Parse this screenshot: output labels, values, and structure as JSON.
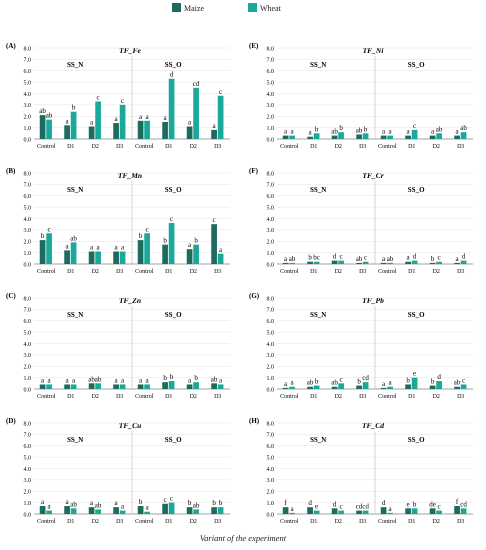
{
  "legend": [
    {
      "label": "Maize",
      "color": "#1d6b5f"
    },
    {
      "label": "Wheat",
      "color": "#1aa89a"
    }
  ],
  "x_axis_title": "Variant of the experiment",
  "chart_data": [
    {
      "type": "bar",
      "panel_label": "(A)",
      "title": "TF_Fe",
      "groups": [
        {
          "label": "SS_N",
          "categories": [
            "Control",
            "D1",
            "D2",
            "D3"
          ]
        },
        {
          "label": "SS_O",
          "categories": [
            "Control",
            "D1",
            "D2",
            "D3"
          ]
        }
      ],
      "series": [
        {
          "name": "Maize",
          "values": [
            2.1,
            1.2,
            1.1,
            1.4,
            1.6,
            1.5,
            1.1,
            0.8
          ],
          "letters": [
            "ab",
            "a",
            "a",
            "a",
            "a",
            "a",
            "a",
            "a"
          ]
        },
        {
          "name": "Wheat",
          "values": [
            1.7,
            2.4,
            3.3,
            3.0,
            1.6,
            5.3,
            4.5,
            3.8
          ],
          "letters": [
            "ab",
            "b",
            "c",
            "c",
            "a",
            "d",
            "cd",
            "c"
          ]
        }
      ],
      "ylim": [
        0,
        8
      ],
      "yticks": [
        "0.0",
        "1.0",
        "2.0",
        "3.0",
        "4.0",
        "5.0",
        "6.0",
        "7.0",
        "8.0"
      ]
    },
    {
      "type": "bar",
      "panel_label": "(B)",
      "title": "TF_Mn",
      "groups": [
        {
          "label": "SS_N",
          "categories": [
            "Control",
            "D1",
            "D2",
            "D3"
          ]
        },
        {
          "label": "SS_O",
          "categories": [
            "Control",
            "D1",
            "D2",
            "D3"
          ]
        }
      ],
      "series": [
        {
          "name": "Maize",
          "values": [
            2.1,
            1.2,
            1.1,
            1.1,
            2.1,
            1.7,
            1.3,
            3.5
          ],
          "letters": [
            "b",
            "a",
            "a",
            "a",
            "b",
            "b",
            "a",
            "c"
          ]
        },
        {
          "name": "Wheat",
          "values": [
            2.7,
            1.9,
            1.1,
            1.1,
            2.7,
            3.6,
            1.7,
            0.9
          ],
          "letters": [
            "c",
            "ab",
            "a",
            "a",
            "c",
            "c",
            "b",
            "a"
          ]
        }
      ],
      "ylim": [
        0,
        8
      ],
      "yticks": [
        "0.0",
        "1.0",
        "2.0",
        "3.0",
        "4.0",
        "5.0",
        "6.0",
        "7.0",
        "8.0"
      ]
    },
    {
      "type": "bar",
      "panel_label": "(C)",
      "title": "TF_Zn",
      "groups": [
        {
          "label": "SS_N",
          "categories": [
            "Control",
            "D1",
            "D2",
            "D3"
          ]
        },
        {
          "label": "SS_O",
          "categories": [
            "Control",
            "D1",
            "D2",
            "D3"
          ]
        }
      ],
      "series": [
        {
          "name": "Maize",
          "values": [
            0.4,
            0.4,
            0.5,
            0.4,
            0.4,
            0.6,
            0.4,
            0.5
          ],
          "letters": [
            "a",
            "a",
            "ab",
            "a",
            "a",
            "b",
            "a",
            "ab"
          ]
        },
        {
          "name": "Wheat",
          "values": [
            0.4,
            0.4,
            0.5,
            0.4,
            0.4,
            0.7,
            0.6,
            0.4
          ],
          "letters": [
            "a",
            "a",
            "ab",
            "a",
            "a",
            "b",
            "b",
            "a"
          ]
        }
      ],
      "ylim": [
        0,
        8
      ],
      "yticks": [
        "0.0",
        "1.0",
        "2.0",
        "3.0",
        "4.0",
        "5.0",
        "6.0",
        "7.0",
        "8.0"
      ]
    },
    {
      "type": "bar",
      "panel_label": "(D)",
      "title": "TF_Cu",
      "groups": [
        {
          "label": "SS_N",
          "categories": [
            "Control",
            "D1",
            "D2",
            "D3"
          ]
        },
        {
          "label": "SS_O",
          "categories": [
            "Control",
            "D1",
            "D2",
            "D3"
          ]
        }
      ],
      "series": [
        {
          "name": "Maize",
          "values": [
            0.7,
            0.7,
            0.6,
            0.6,
            0.7,
            0.9,
            0.6,
            0.6
          ],
          "letters": [
            "a",
            "a",
            "a",
            "a",
            "b",
            "c",
            "b",
            "b"
          ]
        },
        {
          "name": "Wheat",
          "values": [
            0.3,
            0.5,
            0.4,
            0.3,
            0.2,
            1.0,
            0.4,
            0.6
          ],
          "letters": [
            "a",
            "ab",
            "ab",
            "a",
            "a",
            "c",
            "ab",
            "b"
          ]
        }
      ],
      "ylim": [
        0,
        8
      ],
      "yticks": [
        "0.0",
        "1.0",
        "2.0",
        "3.0",
        "4.0",
        "5.0",
        "6.0",
        "7.0",
        "8.0"
      ]
    },
    {
      "type": "bar",
      "panel_label": "(E)",
      "title": "TF_Ni",
      "groups": [
        {
          "label": "SS_N",
          "categories": [
            "Control",
            "D1",
            "D2",
            "D3"
          ]
        },
        {
          "label": "SS_O",
          "categories": [
            "Control",
            "D1",
            "D2",
            "D3"
          ]
        }
      ],
      "series": [
        {
          "name": "Maize",
          "values": [
            0.3,
            0.2,
            0.3,
            0.4,
            0.3,
            0.3,
            0.3,
            0.3
          ],
          "letters": [
            "a",
            "a",
            "ab",
            "ab",
            "a",
            "a",
            "a",
            "a"
          ]
        },
        {
          "name": "Wheat",
          "values": [
            0.3,
            0.5,
            0.6,
            0.5,
            0.3,
            0.8,
            0.5,
            0.6
          ],
          "letters": [
            "a",
            "b",
            "b",
            "b",
            "a",
            "c",
            "ab",
            "ab"
          ]
        }
      ],
      "ylim": [
        0,
        8
      ],
      "yticks": [
        "0.0",
        "1.0",
        "2.0",
        "3.0",
        "4.0",
        "5.0",
        "6.0",
        "7.0",
        "8.0"
      ]
    },
    {
      "type": "bar",
      "panel_label": "(F)",
      "title": "TF_Cr",
      "groups": [
        {
          "label": "SS_N",
          "categories": [
            "Control",
            "D1",
            "D2",
            "D3"
          ]
        },
        {
          "label": "SS_O",
          "categories": [
            "Control",
            "D1",
            "D2",
            "D3"
          ]
        }
      ],
      "series": [
        {
          "name": "Maize",
          "values": [
            0.1,
            0.2,
            0.3,
            0.1,
            0.1,
            0.2,
            0.1,
            0.1
          ],
          "letters": [
            "a",
            "b",
            "d",
            "ab",
            "a",
            "a",
            "b",
            "a"
          ]
        },
        {
          "name": "Wheat",
          "values": [
            0.1,
            0.2,
            0.3,
            0.2,
            0.1,
            0.3,
            0.2,
            0.3
          ],
          "letters": [
            "ab",
            "bc",
            "c",
            "c",
            "ab",
            "d",
            "c",
            "d"
          ]
        }
      ],
      "ylim": [
        0,
        8
      ],
      "yticks": [
        "0.0",
        "1.0",
        "2.0",
        "3.0",
        "4.0",
        "5.0",
        "6.0",
        "7.0",
        "8.0"
      ]
    },
    {
      "type": "bar",
      "panel_label": "(G)",
      "title": "TF_Pb",
      "groups": [
        {
          "label": "SS_N",
          "categories": [
            "Control",
            "D1",
            "D2",
            "D3"
          ]
        },
        {
          "label": "SS_O",
          "categories": [
            "Control",
            "D1",
            "D2",
            "D3"
          ]
        }
      ],
      "series": [
        {
          "name": "Maize",
          "values": [
            0.1,
            0.2,
            0.2,
            0.3,
            0.1,
            0.4,
            0.3,
            0.2
          ],
          "letters": [
            "a",
            "ab",
            "ab",
            "b",
            "a",
            "b",
            "b",
            "ab"
          ]
        },
        {
          "name": "Wheat",
          "values": [
            0.2,
            0.3,
            0.5,
            0.6,
            0.2,
            1.0,
            0.7,
            0.4
          ],
          "letters": [
            "a",
            "b",
            "c",
            "cd",
            "a",
            "e",
            "d",
            "c"
          ]
        }
      ],
      "ylim": [
        0,
        8
      ],
      "yticks": [
        "0.0",
        "1.0",
        "2.0",
        "3.0",
        "4.0",
        "5.0",
        "6.0",
        "7.0",
        "8.0"
      ]
    },
    {
      "type": "bar",
      "panel_label": "(H)",
      "title": "TF_Cd",
      "groups": [
        {
          "label": "SS_N",
          "categories": [
            "Control",
            "D1",
            "D2",
            "D3"
          ]
        },
        {
          "label": "SS_O",
          "categories": [
            "Control",
            "D1",
            "D2",
            "D3"
          ]
        }
      ],
      "series": [
        {
          "name": "Maize",
          "values": [
            0.6,
            0.6,
            0.5,
            0.3,
            0.6,
            0.5,
            0.5,
            0.7
          ],
          "letters": [
            "f",
            "d",
            "d",
            "cd",
            "d",
            "e",
            "de",
            "f"
          ]
        },
        {
          "name": "Wheat",
          "values": [
            0.1,
            0.3,
            0.3,
            0.3,
            0.1,
            0.5,
            0.3,
            0.5
          ],
          "letters": [
            "a",
            "e",
            "c",
            "cd",
            "a",
            "b",
            "c",
            "cd"
          ]
        }
      ],
      "ylim": [
        0,
        8
      ],
      "yticks": [
        "0.0",
        "1.0",
        "2.0",
        "3.0",
        "4.0",
        "5.0",
        "6.0",
        "7.0",
        "8.0"
      ]
    }
  ]
}
